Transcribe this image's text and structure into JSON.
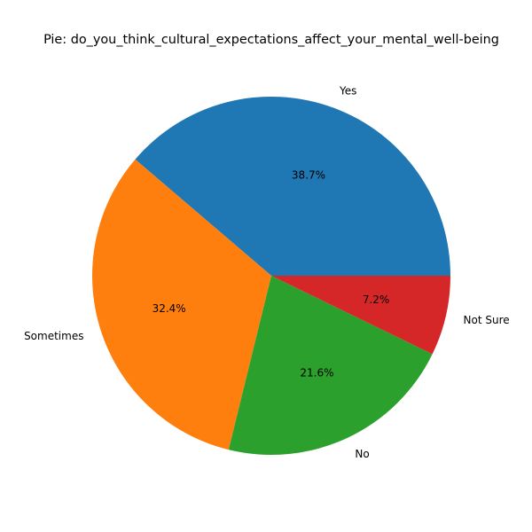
{
  "chart_data": {
    "type": "pie",
    "title": "Pie: do_you_think_cultural_expectations_affect_your_mental_well-being",
    "categories": [
      "Yes",
      "Sometimes",
      "No",
      "Not Sure"
    ],
    "values": [
      38.7,
      32.4,
      21.6,
      7.2
    ],
    "value_labels": [
      "38.7%",
      "32.4%",
      "21.6%",
      "7.2%"
    ],
    "colors": [
      "#1f77b4",
      "#ff7f0e",
      "#2ca02c",
      "#d62728"
    ],
    "start_angle_deg": 0,
    "direction": "counterclockwise",
    "legend": "none"
  }
}
